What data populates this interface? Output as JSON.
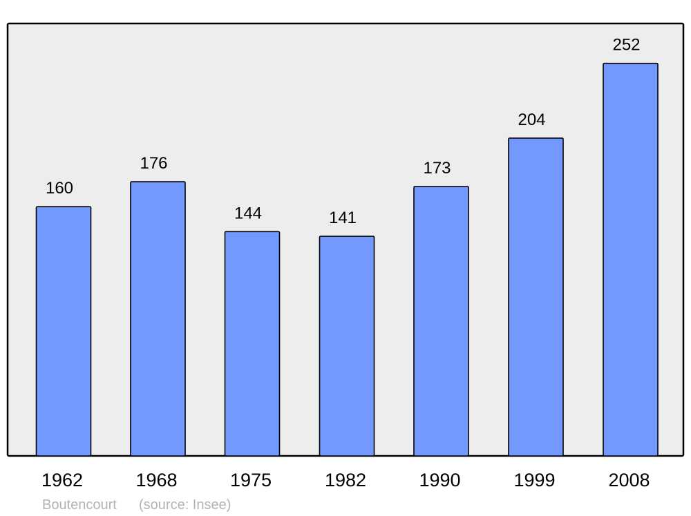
{
  "chart_data": {
    "type": "bar",
    "categories": [
      "1962",
      "1968",
      "1975",
      "1982",
      "1990",
      "1999",
      "2008"
    ],
    "values": [
      160,
      176,
      144,
      141,
      173,
      204,
      252
    ],
    "data_labels": [
      "160",
      "176",
      "144",
      "141",
      "173",
      "204",
      "252"
    ],
    "title": "",
    "xlabel": "",
    "ylabel": "",
    "ylim": [
      0,
      277.6
    ],
    "grid": false,
    "legend": "none",
    "colors": {
      "bar": "#7399ff",
      "bar_stroke": "#000000",
      "plot_bg": "#ededed",
      "footer_text": "#b3b3b3"
    }
  },
  "footer": {
    "place": "Boutencourt",
    "source": "(source: Insee)"
  }
}
